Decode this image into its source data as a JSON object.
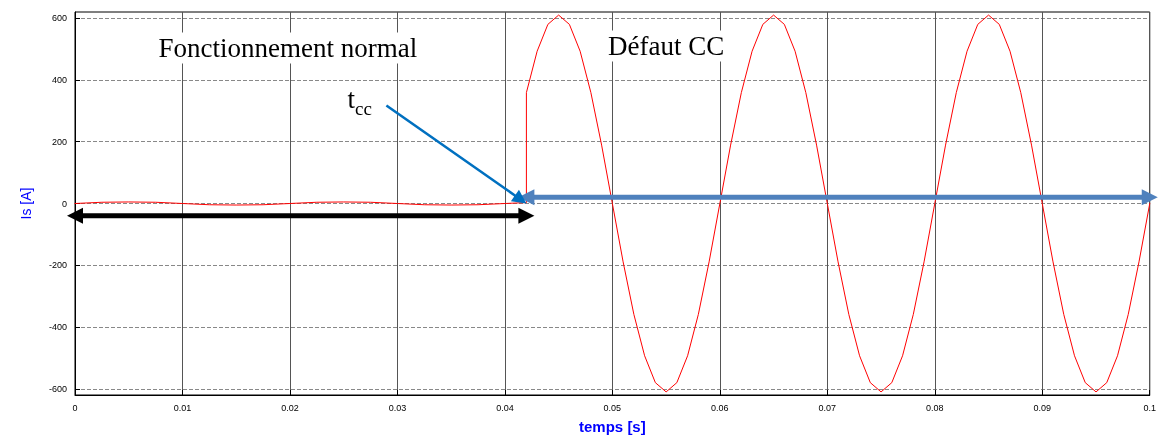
{
  "chart_data": {
    "type": "line",
    "xlabel": "temps [s]",
    "ylabel": "Is [A]",
    "xlim": [
      0,
      0.1
    ],
    "xticks": [
      0,
      0.01,
      0.02,
      0.03,
      0.04,
      0.05,
      0.06,
      0.07,
      0.08,
      0.09,
      0.1
    ],
    "ylim": [
      -620,
      620
    ],
    "yticks": [
      -600,
      -400,
      -200,
      0,
      200,
      400,
      600
    ],
    "grid": true,
    "marker": "none",
    "line_style": "solid",
    "annotations": [
      "Fonctionnement normal",
      "Défaut CC",
      "t$_{cc}$"
    ],
    "series": [
      {
        "color": "#ff0000",
        "x": [
          0,
          0.0025,
          0.005,
          0.0075,
          0.01,
          0.0125,
          0.015,
          0.0175,
          0.02,
          0.0225,
          0.025,
          0.0275,
          0.03,
          0.0325,
          0.035,
          0.0375,
          0.04,
          0.042,
          0.042,
          0.043,
          0.044,
          0.045,
          0.046,
          0.047,
          0.048,
          0.049,
          0.05,
          0.051,
          0.052,
          0.053,
          0.054,
          0.055,
          0.056,
          0.057,
          0.058,
          0.059,
          0.06,
          0.061,
          0.062,
          0.063,
          0.064,
          0.065,
          0.066,
          0.067,
          0.068,
          0.069,
          0.07,
          0.071,
          0.072,
          0.073,
          0.074,
          0.075,
          0.076,
          0.077,
          0.078,
          0.079,
          0.08,
          0.081,
          0.082,
          0.083,
          0.084,
          0.085,
          0.086,
          0.087,
          0.088,
          0.089,
          0.09,
          0.091,
          0.092,
          0.093,
          0.094,
          0.095,
          0.096,
          0.097,
          0.098,
          0.099,
          0.1
        ],
        "values": [
          0,
          4,
          5,
          4,
          0,
          -4,
          -5,
          -4,
          0,
          4,
          5,
          4,
          0,
          -4,
          -5,
          -4,
          0,
          3,
          359,
          493,
          580,
          610,
          580,
          493,
          359,
          189,
          0,
          -189,
          -359,
          -493,
          -580,
          -610,
          -580,
          -493,
          -359,
          -189,
          0,
          189,
          359,
          493,
          580,
          610,
          580,
          493,
          359,
          189,
          0,
          -189,
          -359,
          -493,
          -580,
          -610,
          -580,
          -493,
          -359,
          -189,
          0,
          189,
          359,
          493,
          580,
          610,
          580,
          493,
          359,
          189,
          0,
          -189,
          -359,
          -493,
          -580,
          -610,
          -580,
          -493,
          -359,
          -189,
          0
        ]
      },
      {
        "color": "#000000",
        "marker": "triangle",
        "x": [
          0,
          0.042
        ],
        "values": [
          -40,
          -40
        ]
      },
      {
        "color": "#4f81bd",
        "marker": "triangle",
        "x": [
          0.042,
          0.1
        ],
        "values": [
          20,
          20
        ]
      }
    ]
  }
}
